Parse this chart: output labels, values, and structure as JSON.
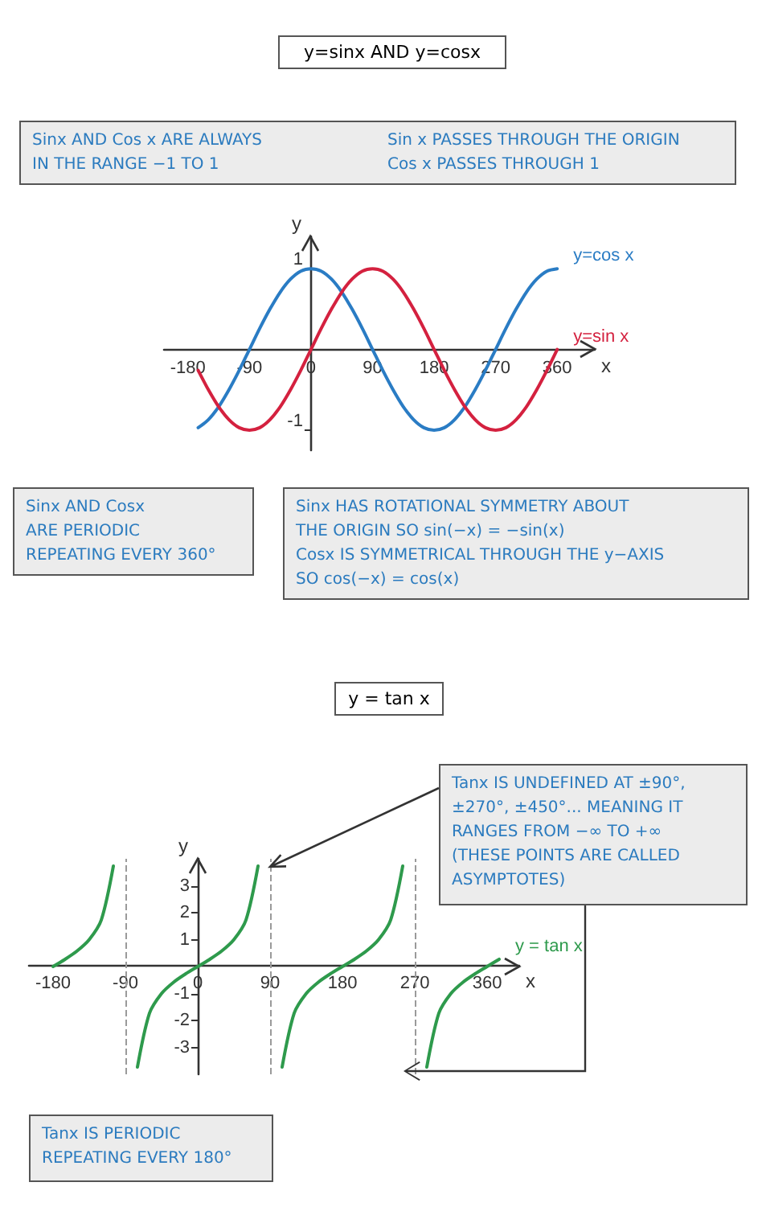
{
  "chart_data": [
    {
      "type": "line",
      "title": "y=sinx AND y=cosx",
      "xlabel": "x",
      "ylabel": "y",
      "annotations": [
        "Sinx AND Cos x ARE ALWAYS\nIN THE RANGE −1 TO 1",
        "Sin x PASSES THROUGH THE ORIGIN\nCos x PASSES THROUGH 1",
        "Sinx AND Cosx\nARE PERIODIC\nREPEATING EVERY 360°",
        "Sinx HAS ROTATIONAL SYMMETRY ABOUT\nTHE ORIGIN SO sin(−x) = −sin(x)\nCosx IS SYMMETRICAL THROUGH THE y−AXIS\nSO cos(−x) = cos(x)"
      ],
      "x": [
        -165,
        -150,
        -135,
        -120,
        -105,
        -90,
        -75,
        -60,
        -45,
        -30,
        -15,
        0,
        15,
        30,
        45,
        60,
        75,
        90,
        105,
        120,
        135,
        150,
        165,
        180,
        195,
        210,
        225,
        240,
        255,
        270,
        285,
        300,
        315,
        330,
        345,
        360
      ],
      "series": [
        {
          "name": "y=cos x",
          "color": "#2a7cc4",
          "values": [
            -0.97,
            -0.87,
            -0.71,
            -0.5,
            -0.26,
            0,
            0.26,
            0.5,
            0.71,
            0.87,
            0.97,
            1,
            0.97,
            0.87,
            0.71,
            0.5,
            0.26,
            0,
            -0.26,
            -0.5,
            -0.71,
            -0.87,
            -0.97,
            -1,
            -0.97,
            -0.87,
            -0.71,
            -0.5,
            -0.26,
            0,
            0.26,
            0.5,
            0.71,
            0.87,
            0.97,
            1
          ]
        },
        {
          "name": "y=sin x",
          "color": "#d4213f",
          "values": [
            -0.26,
            -0.5,
            -0.71,
            -0.87,
            -0.97,
            -1,
            -0.97,
            -0.87,
            -0.71,
            -0.5,
            -0.26,
            0,
            0.26,
            0.5,
            0.71,
            0.87,
            0.97,
            1,
            0.97,
            0.87,
            0.71,
            0.5,
            0.26,
            0,
            -0.26,
            -0.5,
            -0.71,
            -0.87,
            -0.97,
            -1,
            -0.97,
            -0.87,
            -0.71,
            -0.5,
            -0.26,
            0
          ]
        }
      ],
      "xlim": [
        -215,
        415
      ],
      "ylim": [
        -1.25,
        1.4
      ],
      "xticks": [
        -180,
        -90,
        0,
        90,
        180,
        270,
        360
      ],
      "yticks": [
        -1,
        1
      ],
      "grid": false,
      "legend": false,
      "marker": "none",
      "line_style": "solid"
    },
    {
      "type": "line",
      "title": "y = tan x",
      "xlabel": "x",
      "ylabel": "y",
      "annotations": [
        {
          "text": "Tanx IS UNDEFINED AT ±90°,\n±270°, ±450°... MEANING IT\nRANGES FROM −∞ TO +∞\n(THESE POINTS ARE CALLED\nASYMPTOTES)",
          "x": 90,
          "y": 3.7
        },
        "Tanx IS PERIODIC\nREPEATING EVERY 180°"
      ],
      "x": [
        -180,
        -165,
        -150,
        -135,
        -120,
        -105,
        -90,
        -75,
        -60,
        -45,
        -30,
        -15,
        0,
        15,
        30,
        45,
        60,
        75,
        90,
        105,
        120,
        135,
        150,
        165,
        180,
        195,
        210,
        225,
        240,
        255,
        270,
        285,
        300,
        315,
        330,
        345,
        360,
        375
      ],
      "series": [
        {
          "name": "y = tan x",
          "color": "#2e9a4c",
          "values": [
            0,
            0.27,
            0.58,
            1,
            1.73,
            3.73,
            null,
            -3.73,
            -1.73,
            -1,
            -0.58,
            -0.27,
            0,
            0.27,
            0.58,
            1,
            1.73,
            3.73,
            null,
            -3.73,
            -1.73,
            -1,
            -0.58,
            -0.27,
            0,
            0.27,
            0.58,
            1,
            1.73,
            3.73,
            null,
            -3.73,
            -1.73,
            -1,
            -0.58,
            -0.27,
            0,
            0.27
          ]
        }
      ],
      "xlim": [
        -210,
        400
      ],
      "ylim": [
        -4,
        4
      ],
      "xticks": [
        -180,
        -90,
        0,
        90,
        180,
        270,
        360
      ],
      "yticks": [
        -3,
        -2,
        -1,
        1,
        2,
        3
      ],
      "ref_lines": [
        {
          "axis": "x",
          "value": -90,
          "color": "#9a9a9a",
          "line_style": "dashed"
        },
        {
          "axis": "x",
          "value": 90,
          "color": "#9a9a9a",
          "line_style": "dashed"
        },
        {
          "axis": "x",
          "value": 270,
          "color": "#9a9a9a",
          "line_style": "dashed"
        }
      ],
      "grid": false,
      "legend": false,
      "marker": "none",
      "line_style": "solid"
    }
  ]
}
